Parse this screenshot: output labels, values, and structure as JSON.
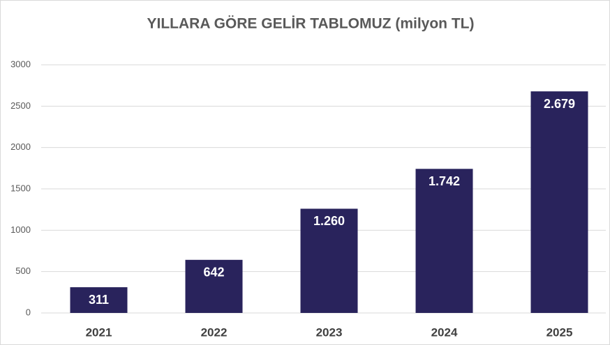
{
  "chart_data": {
    "type": "bar",
    "title": "YILLARA GÖRE GELİR  TABLOMUZ (milyon TL)",
    "categories": [
      "2021",
      "2022",
      "2023",
      "2024",
      "2025"
    ],
    "values": [
      311,
      642,
      1260,
      1742,
      2679
    ],
    "value_labels": [
      "311",
      "642",
      "1.260",
      "1.742",
      "2.679"
    ],
    "color": "#29235c",
    "ylim": [
      0,
      3000
    ],
    "yticks": [
      0,
      500,
      1000,
      1500,
      2000,
      2500,
      3000
    ],
    "grid": true
  }
}
